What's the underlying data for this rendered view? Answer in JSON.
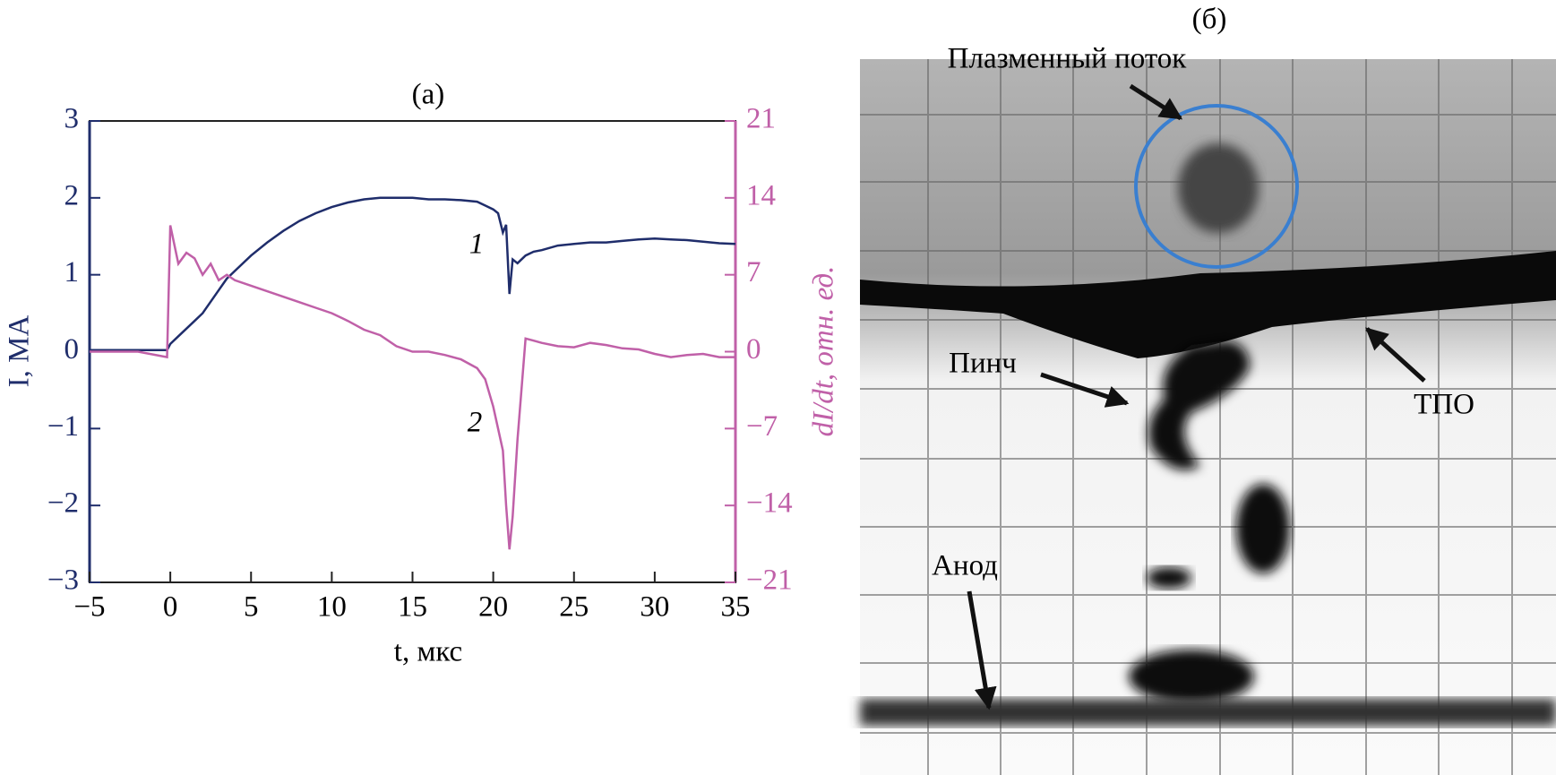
{
  "chart_data": {
    "type": "line",
    "title": "(а)",
    "x_label": "t, мкс",
    "y_label": "I, МА",
    "y2_label": "dI/dt, отн. ед.",
    "x": [
      -5,
      -2,
      -0.2,
      0,
      0.5,
      1,
      1.5,
      2,
      2.5,
      3,
      3.5,
      4,
      5,
      6,
      7,
      8,
      9,
      10,
      11,
      12,
      13,
      14,
      15,
      16,
      17,
      18,
      19,
      19.5,
      20,
      20.3,
      20.6,
      20.8,
      21,
      21.2,
      21.5,
      22,
      22.5,
      23,
      24,
      25,
      26,
      27,
      28,
      29,
      30,
      31,
      32,
      33,
      34,
      35
    ],
    "series": [
      {
        "name": "1",
        "color": "#1f2d6b",
        "axis": "y",
        "values": [
          0.02,
          0.02,
          0.02,
          0.1,
          0.2,
          0.3,
          0.4,
          0.5,
          0.65,
          0.8,
          0.95,
          1.05,
          1.25,
          1.42,
          1.57,
          1.7,
          1.8,
          1.88,
          1.94,
          1.98,
          2.0,
          2.0,
          2.0,
          1.98,
          1.98,
          1.97,
          1.95,
          1.9,
          1.85,
          1.8,
          1.55,
          1.65,
          0.75,
          1.2,
          1.15,
          1.25,
          1.3,
          1.32,
          1.38,
          1.4,
          1.42,
          1.42,
          1.44,
          1.46,
          1.47,
          1.46,
          1.45,
          1.43,
          1.41,
          1.4
        ]
      },
      {
        "name": "2",
        "color": "#c060a8",
        "axis": "y2",
        "values": [
          0,
          0,
          -0.5,
          11.5,
          8,
          9,
          8.5,
          7,
          8,
          6.5,
          7,
          6.5,
          6,
          5.5,
          5,
          4.5,
          4,
          3.5,
          2.8,
          2,
          1.5,
          0.5,
          0,
          0,
          -0.3,
          -0.7,
          -1.5,
          -2.5,
          -5,
          -7,
          -9,
          -14,
          -18,
          -15,
          -8,
          1.2,
          1,
          0.8,
          0.5,
          0.4,
          0.8,
          0.6,
          0.3,
          0.2,
          -0.2,
          -0.5,
          -0.3,
          -0.2,
          -0.5,
          -0.5
        ]
      }
    ],
    "xlim": [
      -5,
      35
    ],
    "xticks": [
      {
        "value": -5,
        "label": "−5"
      },
      0,
      5,
      10,
      15,
      20,
      25,
      30,
      35
    ],
    "ylim": [
      -3,
      3
    ],
    "yticks": [
      {
        "value": -3,
        "label": "−3"
      },
      {
        "value": -2,
        "label": "−2"
      },
      {
        "value": -1,
        "label": "−1"
      },
      0,
      1,
      2,
      3
    ],
    "y2lim": [
      -21,
      21
    ],
    "y2ticks": [
      {
        "value": -21,
        "label": "−21"
      },
      {
        "value": -14,
        "label": "−14"
      },
      {
        "value": -7,
        "label": "−7"
      },
      0,
      7,
      14,
      21
    ]
  },
  "image_panel": {
    "label": "(б)",
    "annotations": [
      "Плазменный поток",
      "Пинч",
      "ТПО",
      "Анод"
    ]
  }
}
